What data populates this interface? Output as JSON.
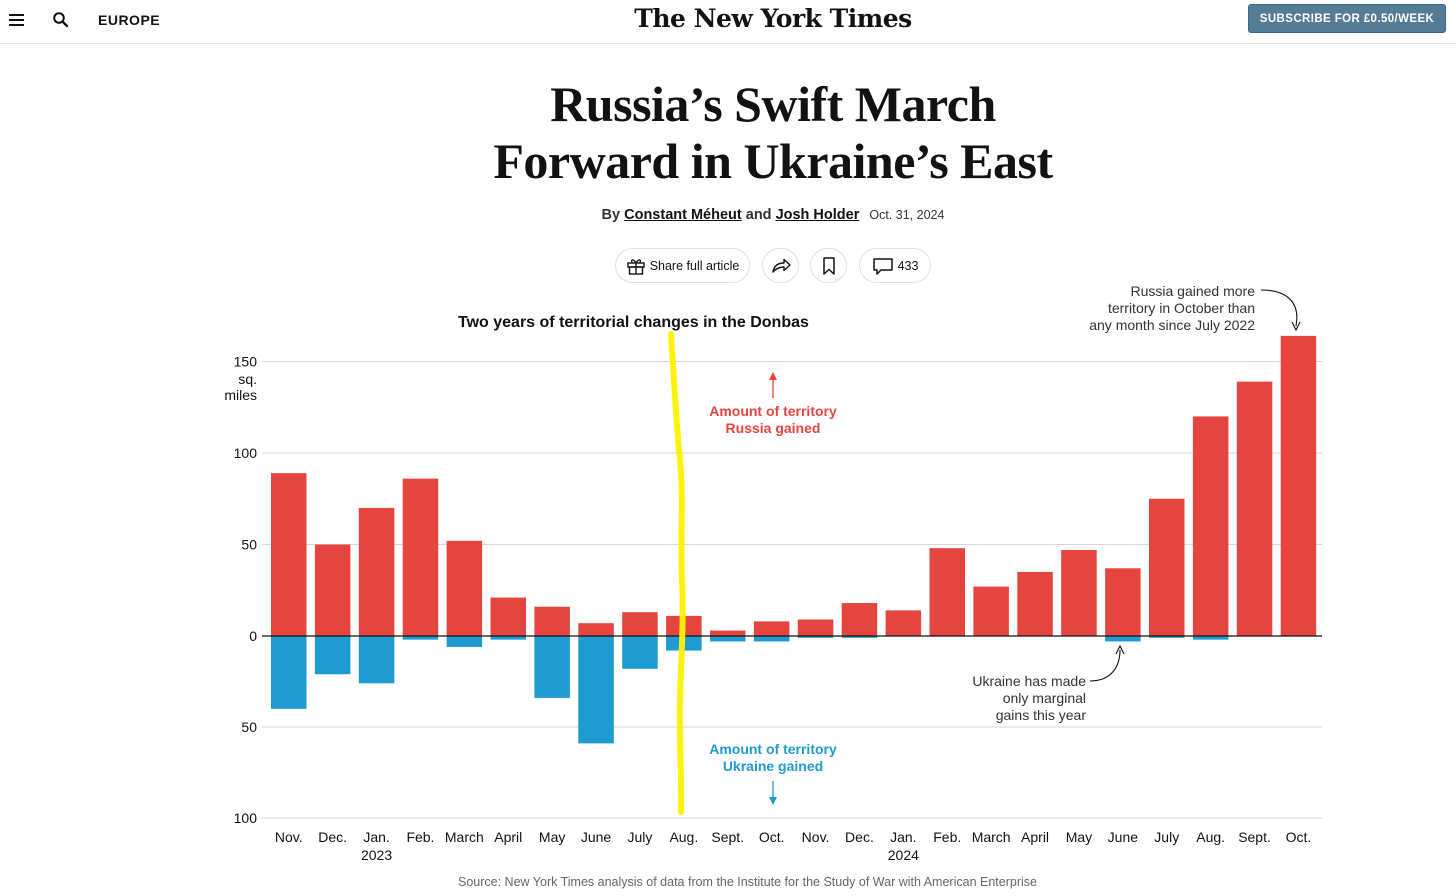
{
  "topbar": {
    "section": "EUROPE",
    "masthead": "The New York Times",
    "subscribe_label": "SUBSCRIBE FOR £0.50/WEEK"
  },
  "article": {
    "headline_line1": "Russia’s Swift March",
    "headline_line2": "Forward in Ukraine’s East",
    "by": "By",
    "author1": "Constant Méheut",
    "and": "and",
    "author2": "Josh Holder",
    "date": "Oct. 31, 2024"
  },
  "toolbar": {
    "share_label": "Share full article",
    "comment_count": "433"
  },
  "colors": {
    "russia": "#e4463f",
    "ukraine": "#1f9bd1",
    "highlight": "#fff200",
    "subscribe_bg": "#567b95"
  },
  "icons": [
    "menu-icon",
    "search-icon",
    "gift-icon",
    "share-arrow-icon",
    "bookmark-icon",
    "comment-icon"
  ],
  "chart_data": {
    "type": "bar",
    "title": "Two years of territorial changes in the Donbas",
    "unit_label": [
      "sq.",
      "miles"
    ],
    "categories": [
      "Nov.",
      "Dec.",
      "Jan.",
      "Feb.",
      "March",
      "April",
      "May",
      "June",
      "July",
      "Aug.",
      "Sept.",
      "Oct.",
      "Nov.",
      "Dec.",
      "Jan.",
      "Feb.",
      "March",
      "April",
      "May",
      "June",
      "July",
      "Aug.",
      "Sept.",
      "Oct."
    ],
    "year_labels": [
      {
        "index": 2,
        "label": "2023"
      },
      {
        "index": 14,
        "label": "2024"
      }
    ],
    "series": [
      {
        "name": "Amount of territory Russia gained",
        "values": [
          89,
          50,
          70,
          86,
          52,
          21,
          16,
          7,
          13,
          11,
          3,
          8,
          9,
          18,
          14,
          48,
          27,
          35,
          47,
          37,
          75,
          120,
          139,
          164
        ]
      },
      {
        "name": "Amount of territory Ukraine gained",
        "values": [
          40,
          21,
          26,
          2,
          6,
          2,
          34,
          59,
          18,
          8,
          3,
          3,
          1,
          1,
          0,
          0,
          0,
          0,
          0,
          3,
          1,
          2,
          0,
          0
        ]
      }
    ],
    "yticks_up": [
      {
        "v": 150,
        "label": "150"
      },
      {
        "v": 100,
        "label": "100"
      },
      {
        "v": 50,
        "label": "50"
      },
      {
        "v": 0,
        "label": "0"
      }
    ],
    "yticks_down": [
      {
        "v": 50,
        "label": "50"
      },
      {
        "v": 100,
        "label": "100"
      }
    ],
    "ylim": [
      -100,
      164
    ],
    "grid": true,
    "russia_label": [
      "Amount of territory",
      "Russia gained"
    ],
    "ukraine_label": [
      "Amount of territory",
      "Ukraine gained"
    ],
    "annotation_top": [
      "Russia gained more",
      "territory in October than",
      "any month since July 2022"
    ],
    "annotation_bottom": [
      "Ukraine has made",
      "only marginal",
      "gains this year"
    ],
    "highlight_after_index": 9
  },
  "source": "Source: New York Times analysis of data from the Institute for the Study of War with American Enterprise"
}
